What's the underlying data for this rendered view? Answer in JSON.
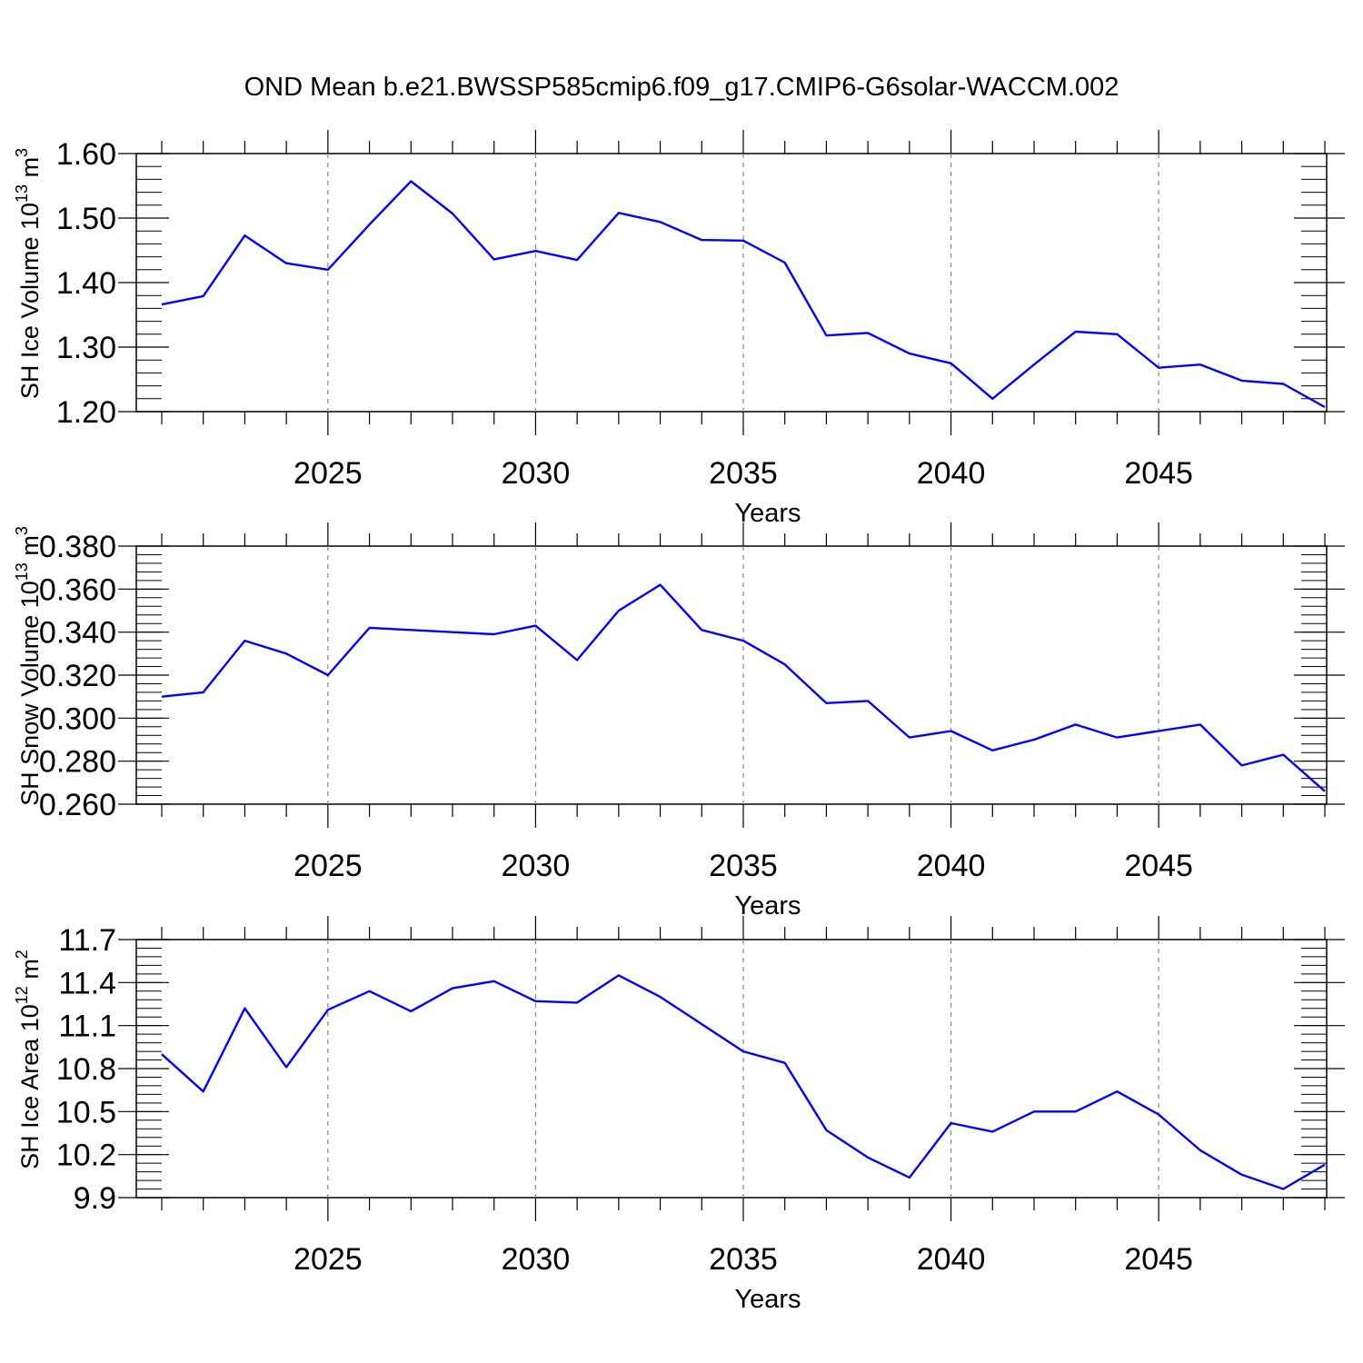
{
  "title": "OND Mean b.e21.BWSSP585cmip6.f09_g17.CMIP6-G6solar-WACCM.002",
  "line_color": "#0000ff",
  "chart_data": [
    {
      "type": "line",
      "id": "ice-volume",
      "ylabel_main": "SH Ice Volume 10",
      "ylabel_exp": "13",
      "ylabel_unit": " m",
      "ylabel_unit_exp": "3",
      "xlabel": "Years",
      "xlim": [
        2021,
        2049
      ],
      "ylim": [
        1.2,
        1.6
      ],
      "x_ticks": [
        2025,
        2030,
        2035,
        2040,
        2045
      ],
      "x_tick_labels": [
        "2025",
        "2030",
        "2035",
        "2040",
        "2045"
      ],
      "y_ticks": [
        1.2,
        1.3,
        1.4,
        1.5,
        1.6
      ],
      "y_tick_labels": [
        "1.20",
        "1.30",
        "1.40",
        "1.50",
        "1.60"
      ],
      "y_minor_step": 0.02,
      "x": [
        2021,
        2022,
        2023,
        2024,
        2025,
        2026,
        2027,
        2028,
        2029,
        2030,
        2031,
        2032,
        2033,
        2034,
        2035,
        2036,
        2037,
        2038,
        2039,
        2040,
        2041,
        2042,
        2043,
        2044,
        2045,
        2046,
        2047,
        2048,
        2049
      ],
      "values": [
        1.366,
        1.379,
        1.473,
        1.43,
        1.42,
        1.49,
        1.557,
        1.507,
        1.436,
        1.449,
        1.435,
        1.508,
        1.494,
        1.466,
        1.465,
        1.431,
        1.318,
        1.322,
        1.29,
        1.275,
        1.22,
        1.273,
        1.324,
        1.32,
        1.268,
        1.273,
        1.248,
        1.243,
        1.207
      ]
    },
    {
      "type": "line",
      "id": "snow-volume",
      "ylabel_main": "SH Snow Volume 10",
      "ylabel_exp": "13",
      "ylabel_unit": " m",
      "ylabel_unit_exp": "3",
      "xlabel": "Years",
      "xlim": [
        2021,
        2049
      ],
      "ylim": [
        0.26,
        0.38
      ],
      "x_ticks": [
        2025,
        2030,
        2035,
        2040,
        2045
      ],
      "x_tick_labels": [
        "2025",
        "2030",
        "2035",
        "2040",
        "2045"
      ],
      "y_ticks": [
        0.26,
        0.28,
        0.3,
        0.32,
        0.34,
        0.36,
        0.38
      ],
      "y_tick_labels": [
        "0.260",
        "0.280",
        "0.300",
        "0.320",
        "0.340",
        "0.360",
        "0.380"
      ],
      "y_minor_step": 0.004,
      "x": [
        2021,
        2022,
        2023,
        2024,
        2025,
        2026,
        2027,
        2028,
        2029,
        2030,
        2031,
        2032,
        2033,
        2034,
        2035,
        2036,
        2037,
        2038,
        2039,
        2040,
        2041,
        2042,
        2043,
        2044,
        2045,
        2046,
        2047,
        2048,
        2049
      ],
      "values": [
        0.31,
        0.312,
        0.336,
        0.33,
        0.32,
        0.342,
        0.341,
        0.34,
        0.339,
        0.343,
        0.327,
        0.35,
        0.362,
        0.341,
        0.336,
        0.325,
        0.307,
        0.308,
        0.291,
        0.294,
        0.285,
        0.29,
        0.297,
        0.291,
        0.294,
        0.297,
        0.278,
        0.283,
        0.266
      ]
    },
    {
      "type": "line",
      "id": "ice-area",
      "ylabel_main": "SH Ice Area 10",
      "ylabel_exp": "12",
      "ylabel_unit": " m",
      "ylabel_unit_exp": "2",
      "xlabel": "Years",
      "xlim": [
        2021,
        2049
      ],
      "ylim": [
        9.9,
        11.7
      ],
      "x_ticks": [
        2025,
        2030,
        2035,
        2040,
        2045
      ],
      "x_tick_labels": [
        "2025",
        "2030",
        "2035",
        "2040",
        "2045"
      ],
      "y_ticks": [
        9.9,
        10.2,
        10.5,
        10.8,
        11.1,
        11.4,
        11.7
      ],
      "y_tick_labels": [
        "9.9",
        "10.2",
        "10.5",
        "10.8",
        "11.1",
        "11.4",
        "11.7"
      ],
      "y_minor_step": 0.06,
      "x": [
        2021,
        2022,
        2023,
        2024,
        2025,
        2026,
        2027,
        2028,
        2029,
        2030,
        2031,
        2032,
        2033,
        2034,
        2035,
        2036,
        2037,
        2038,
        2039,
        2040,
        2041,
        2042,
        2043,
        2044,
        2045,
        2046,
        2047,
        2048,
        2049
      ],
      "values": [
        10.9,
        10.64,
        11.22,
        10.81,
        11.21,
        11.34,
        11.2,
        11.36,
        11.41,
        11.27,
        11.26,
        11.45,
        11.3,
        11.11,
        10.92,
        10.84,
        10.37,
        10.18,
        10.04,
        10.42,
        10.36,
        10.5,
        10.5,
        10.64,
        10.48,
        10.23,
        10.06,
        9.96,
        10.13
      ]
    }
  ]
}
